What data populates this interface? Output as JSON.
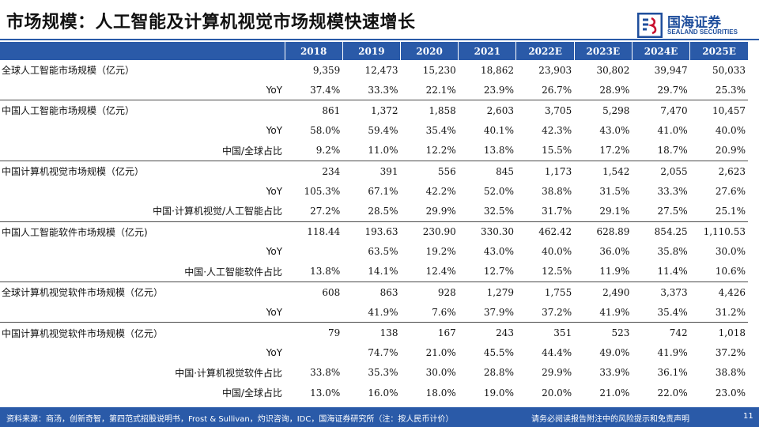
{
  "header": {
    "title": "市场规模：人工智能及计算机视觉市场规模快速增长",
    "logo_cn": "国海证券",
    "logo_en": "SEALAND SECURITIES",
    "logo_mark_icon": "sealand-logo-icon",
    "brand_color": "#2a5aa8"
  },
  "table": {
    "years": [
      "2018",
      "2019",
      "2020",
      "2021",
      "2022E",
      "2023E",
      "2024E",
      "2025E"
    ],
    "rows": [
      {
        "label": "全球人工智能市场规模（亿元）",
        "sub": false,
        "group_start": true,
        "values": [
          "9,359",
          "12,473",
          "15,230",
          "18,862",
          "23,903",
          "30,802",
          "39,947",
          "50,033"
        ]
      },
      {
        "label": "YoY",
        "sub": true,
        "group_start": false,
        "values": [
          "37.4%",
          "33.3%",
          "22.1%",
          "23.9%",
          "26.7%",
          "28.9%",
          "29.7%",
          "25.3%"
        ]
      },
      {
        "label": "中国人工智能市场规模（亿元）",
        "sub": false,
        "group_start": true,
        "values": [
          "861",
          "1,372",
          "1,858",
          "2,603",
          "3,705",
          "5,298",
          "7,470",
          "10,457"
        ]
      },
      {
        "label": "YoY",
        "sub": true,
        "group_start": false,
        "values": [
          "58.0%",
          "59.4%",
          "35.4%",
          "40.1%",
          "42.3%",
          "43.0%",
          "41.0%",
          "40.0%"
        ]
      },
      {
        "label": "中国/全球占比",
        "sub": true,
        "group_start": false,
        "values": [
          "9.2%",
          "11.0%",
          "12.2%",
          "13.8%",
          "15.5%",
          "17.2%",
          "18.7%",
          "20.9%"
        ]
      },
      {
        "label": "中国计算机视觉市场规模（亿元）",
        "sub": false,
        "group_start": true,
        "values": [
          "234",
          "391",
          "556",
          "845",
          "1,173",
          "1,542",
          "2,055",
          "2,623"
        ]
      },
      {
        "label": "YoY",
        "sub": true,
        "group_start": false,
        "values": [
          "105.3%",
          "67.1%",
          "42.2%",
          "52.0%",
          "38.8%",
          "31.5%",
          "33.3%",
          "27.6%"
        ]
      },
      {
        "label": "中国·计算机视觉/人工智能占比",
        "sub": true,
        "group_start": false,
        "values": [
          "27.2%",
          "28.5%",
          "29.9%",
          "32.5%",
          "31.7%",
          "29.1%",
          "27.5%",
          "25.1%"
        ]
      },
      {
        "label": "中国人工智能软件市场规模（亿元)",
        "sub": false,
        "group_start": true,
        "values": [
          "118.44",
          "193.63",
          "230.90",
          "330.30",
          "462.42",
          "628.89",
          "854.25",
          "1,110.53"
        ]
      },
      {
        "label": "YoY",
        "sub": true,
        "group_start": false,
        "values": [
          "",
          "63.5%",
          "19.2%",
          "43.0%",
          "40.0%",
          "36.0%",
          "35.8%",
          "30.0%"
        ]
      },
      {
        "label": "中国·人工智能软件占比",
        "sub": true,
        "group_start": false,
        "values": [
          "13.8%",
          "14.1%",
          "12.4%",
          "12.7%",
          "12.5%",
          "11.9%",
          "11.4%",
          "10.6%"
        ]
      },
      {
        "label": "全球计算机视觉软件市场规模（亿元）",
        "sub": false,
        "group_start": true,
        "values": [
          "608",
          "863",
          "928",
          "1,279",
          "1,755",
          "2,490",
          "3,373",
          "4,426"
        ]
      },
      {
        "label": "YoY",
        "sub": true,
        "group_start": false,
        "values": [
          "",
          "41.9%",
          "7.6%",
          "37.9%",
          "37.2%",
          "41.9%",
          "35.4%",
          "31.2%"
        ]
      },
      {
        "label": "中国计算机视觉软件市场规模（亿元）",
        "sub": false,
        "group_start": true,
        "values": [
          "79",
          "138",
          "167",
          "243",
          "351",
          "523",
          "742",
          "1,018"
        ]
      },
      {
        "label": "YoY",
        "sub": true,
        "group_start": false,
        "values": [
          "",
          "74.7%",
          "21.0%",
          "45.5%",
          "44.4%",
          "49.0%",
          "41.9%",
          "37.2%"
        ]
      },
      {
        "label": "中国·计算机视觉软件占比",
        "sub": true,
        "group_start": false,
        "values": [
          "33.8%",
          "35.3%",
          "30.0%",
          "28.8%",
          "29.9%",
          "33.9%",
          "36.1%",
          "38.8%"
        ]
      },
      {
        "label": "中国/全球占比",
        "sub": true,
        "group_start": false,
        "values": [
          "13.0%",
          "16.0%",
          "18.0%",
          "19.0%",
          "20.0%",
          "21.0%",
          "22.0%",
          "23.0%"
        ]
      }
    ]
  },
  "footer": {
    "source": "资料来源：商汤，创新奇智，第四范式招股说明书，Frost & Sullivan，灼识咨询，IDC，国海证券研究所（注：按人民币计价）",
    "disclaimer": "请务必阅读报告附注中的风险提示和免责声明",
    "page": "11"
  }
}
